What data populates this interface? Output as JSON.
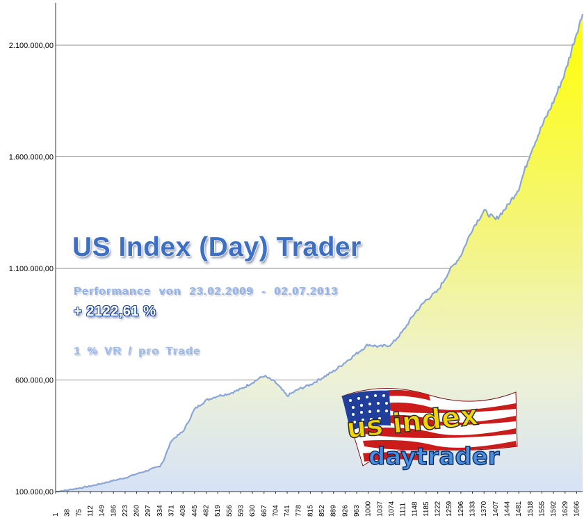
{
  "overlay": {
    "title": "US Index (Day) Trader",
    "performance": "Performance  von  23.02.2009 - 02.07.2013",
    "percent_change": "+ 2122,61 %",
    "risk": "1 % VR / pro Trade"
  },
  "logo": {
    "line1": "us index",
    "line2": "daytrader"
  },
  "chart_data": {
    "type": "area",
    "title": "",
    "xlabel": "",
    "ylabel": "",
    "ylim": [
      100000,
      2290000
    ],
    "xlim": [
      1,
      1685
    ],
    "grid": true,
    "y_ticks": [
      100000,
      600000,
      1100000,
      1600000,
      2100000
    ],
    "y_tick_labels": [
      "100.000,00",
      "600.000,00",
      "1.100.000,00",
      "1.600.000,00",
      "2.100.000,00"
    ],
    "x_tick_labels": [
      "1",
      "38",
      "75",
      "112",
      "149",
      "186",
      "223",
      "260",
      "297",
      "334",
      "371",
      "408",
      "445",
      "482",
      "519",
      "556",
      "593",
      "630",
      "667",
      "704",
      "741",
      "778",
      "815",
      "852",
      "889",
      "926",
      "963",
      "1000",
      "1037",
      "1074",
      "1111",
      "1148",
      "1185",
      "1222",
      "1259",
      "1296",
      "1333",
      "1370",
      "1407",
      "1444",
      "1481",
      "1518",
      "1555",
      "1592",
      "1629",
      "1666"
    ],
    "x": [
      1,
      38,
      75,
      112,
      149,
      186,
      223,
      260,
      297,
      334,
      346,
      371,
      408,
      420,
      445,
      482,
      519,
      556,
      593,
      630,
      667,
      704,
      741,
      778,
      815,
      852,
      889,
      926,
      963,
      1000,
      1037,
      1074,
      1111,
      1148,
      1185,
      1222,
      1259,
      1296,
      1333,
      1370,
      1407,
      1444,
      1481,
      1518,
      1555,
      1592,
      1629,
      1666,
      1685
    ],
    "values": [
      100000,
      107000,
      116000,
      125000,
      137000,
      150000,
      162000,
      180000,
      196000,
      215000,
      240000,
      330000,
      370000,
      400000,
      470000,
      510000,
      530000,
      540000,
      560000,
      590000,
      620000,
      590000,
      530000,
      560000,
      580000,
      610000,
      640000,
      680000,
      720000,
      760000,
      750000,
      760000,
      820000,
      900000,
      960000,
      1000000,
      1090000,
      1160000,
      1280000,
      1360000,
      1320000,
      1380000,
      1460000,
      1620000,
      1740000,
      1850000,
      1980000,
      2160000,
      2240000
    ],
    "colors": {
      "line": "#8aa6d6",
      "fill_top": "#ffff00",
      "fill_bottom": "#dce6f8",
      "grid": "#8c8c8c"
    }
  }
}
